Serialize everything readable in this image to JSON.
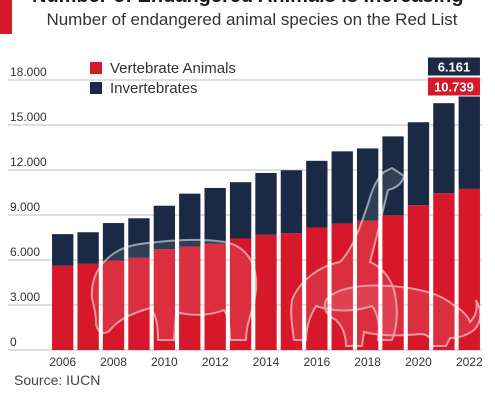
{
  "title": "Number of Endangered Animals is Increasing",
  "subtitle": "Number of endangered animal species on the Red List",
  "source": "Source: IUCN",
  "colors": {
    "vertebrate": "#d7182a",
    "invertebrate": "#1b2a44",
    "grid": "#bdbdbd",
    "text": "#333333"
  },
  "chart_data": {
    "type": "bar",
    "stacked": true,
    "categories": [
      "2006",
      "2007",
      "2008",
      "2009",
      "2010",
      "2011",
      "2012",
      "2013",
      "2014",
      "2015",
      "2016",
      "2017",
      "2018",
      "2019",
      "2020",
      "2021",
      "2022"
    ],
    "x_tick_labels": [
      "2006",
      "2008",
      "2010",
      "2012",
      "2014",
      "2016",
      "2018",
      "2020",
      "2022"
    ],
    "series": [
      {
        "name": "Vertebrate Animals",
        "values": [
          5624,
          5742,
          5966,
          6143,
          6714,
          6896,
          7076,
          7435,
          7678,
          7781,
          8164,
          8423,
          8611,
          8980,
          9650,
          10455,
          10739
        ]
      },
      {
        "name": "Invertebrates",
        "values": [
          2102,
          2108,
          2496,
          2639,
          2904,
          3529,
          3726,
          3752,
          4123,
          4200,
          4449,
          4820,
          4828,
          5261,
          5535,
          6000,
          6161
        ]
      }
    ],
    "data_labels": [
      {
        "series": "Invertebrates",
        "category": "2022",
        "text": "6.161"
      },
      {
        "series": "Vertebrate Animals",
        "category": "2022",
        "text": "10.739"
      }
    ],
    "y_ticks": [
      0,
      3000,
      6000,
      9000,
      12000,
      15000,
      18000
    ],
    "y_tick_labels": [
      "0",
      "3.000",
      "6.000",
      "9.000",
      "12.000",
      "15.000",
      "18.000"
    ],
    "ylim": [
      0,
      18000
    ],
    "grid": true,
    "legend_position": "top-left",
    "xlabel": "",
    "ylabel": ""
  }
}
